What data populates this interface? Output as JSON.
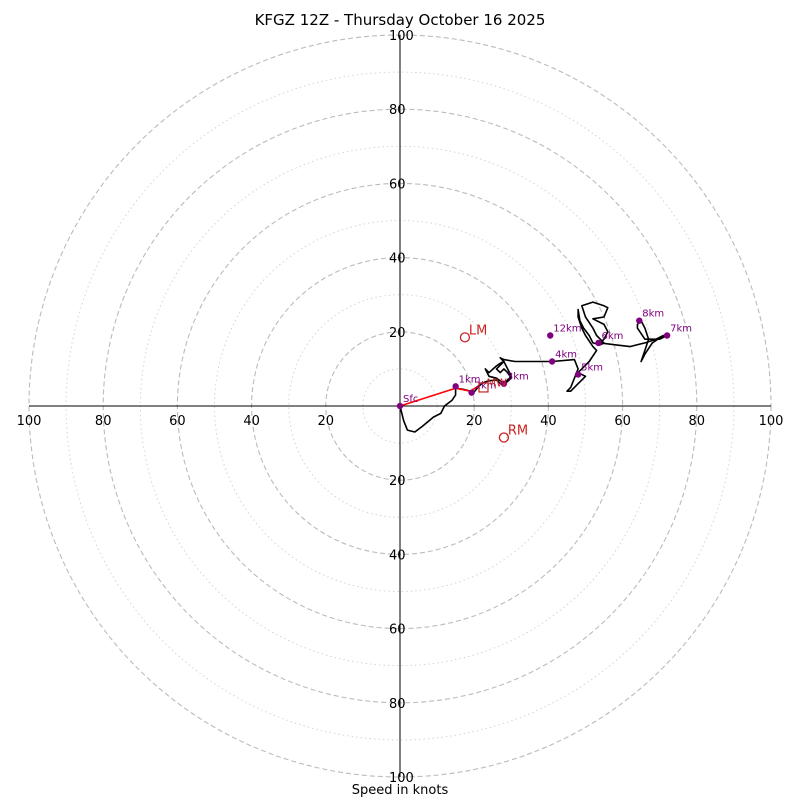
{
  "chart_data": {
    "type": "hodograph",
    "title": "KFGZ 12Z - Thursday October 16 2025",
    "xlabel": "Speed in knots",
    "range": 100,
    "ring_major": [
      20,
      40,
      60,
      80,
      100
    ],
    "ring_minor": [
      10,
      30,
      50,
      70,
      90
    ],
    "tick_labels": [
      "100",
      "80",
      "60",
      "40",
      "20",
      "20",
      "40",
      "60",
      "80",
      "100"
    ],
    "y_tick_labels_top": [
      "20",
      "40",
      "60",
      "80",
      "100"
    ],
    "y_tick_labels_bottom": [
      "20",
      "40",
      "60",
      "80",
      "100"
    ],
    "x_tick_values": [
      -100,
      -80,
      -60,
      -40,
      -20,
      20,
      40,
      60,
      80,
      100
    ],
    "colors": {
      "trace": "#000000",
      "lowlevel": "#ff0000",
      "height_marker": "#800080",
      "storm_motion": "#cc2222",
      "grid": "#bbbbbb"
    },
    "trace": [
      [
        0,
        0
      ],
      [
        1,
        -4
      ],
      [
        2,
        -6.5
      ],
      [
        4,
        -7
      ],
      [
        6,
        -5.5
      ],
      [
        9,
        -3
      ],
      [
        11,
        -2
      ],
      [
        12,
        0
      ],
      [
        14,
        1.5
      ],
      [
        15,
        3
      ],
      [
        15,
        4.8
      ],
      [
        17,
        4.5
      ],
      [
        19,
        4
      ],
      [
        20,
        3.8
      ],
      [
        21,
        5
      ],
      [
        22,
        6
      ],
      [
        23,
        6.5
      ],
      [
        24,
        6.8
      ],
      [
        26,
        7
      ],
      [
        27,
        6
      ],
      [
        28,
        5.8
      ],
      [
        30,
        7.5
      ],
      [
        29,
        9
      ],
      [
        28,
        10
      ],
      [
        27,
        9
      ],
      [
        26,
        10
      ],
      [
        27,
        11
      ],
      [
        28,
        12
      ],
      [
        27,
        11.5
      ],
      [
        26,
        10.8
      ],
      [
        24,
        9
      ],
      [
        23,
        10
      ],
      [
        24,
        8
      ],
      [
        26,
        7.5
      ],
      [
        28,
        6
      ],
      [
        30,
        8
      ],
      [
        29,
        10
      ],
      [
        28,
        12
      ],
      [
        27,
        13
      ],
      [
        28,
        12.5
      ],
      [
        31,
        12
      ],
      [
        34,
        12
      ],
      [
        37,
        12
      ],
      [
        41,
        12
      ],
      [
        47,
        12.5
      ],
      [
        48,
        10
      ],
      [
        47,
        7.5
      ],
      [
        46,
        5
      ],
      [
        45,
        4
      ],
      [
        46,
        4
      ],
      [
        48,
        6
      ],
      [
        50,
        8
      ],
      [
        48,
        9
      ],
      [
        49,
        10
      ],
      [
        51,
        12
      ],
      [
        53,
        15
      ],
      [
        52,
        16
      ],
      [
        50,
        19
      ],
      [
        49,
        21
      ],
      [
        48,
        24
      ],
      [
        48,
        26
      ],
      [
        48.5,
        23
      ],
      [
        49.5,
        21
      ],
      [
        51,
        19
      ],
      [
        52,
        17
      ],
      [
        54,
        16.5
      ],
      [
        55,
        17
      ],
      [
        53,
        19
      ],
      [
        52,
        21
      ],
      [
        50,
        24
      ],
      [
        49,
        27
      ],
      [
        52,
        28
      ],
      [
        55,
        27
      ],
      [
        56,
        26.5
      ],
      [
        55,
        24
      ],
      [
        52,
        23.5
      ],
      [
        55,
        22
      ],
      [
        56,
        20
      ],
      [
        55,
        18
      ],
      [
        54,
        17
      ],
      [
        58,
        16.5
      ],
      [
        62,
        16
      ],
      [
        66,
        17
      ],
      [
        69,
        18
      ],
      [
        71,
        19
      ],
      [
        68,
        17
      ],
      [
        66,
        14
      ],
      [
        65,
        12
      ],
      [
        66,
        15
      ],
      [
        67,
        18
      ],
      [
        66,
        21
      ],
      [
        65,
        23
      ],
      [
        64,
        22
      ],
      [
        64,
        21
      ],
      [
        66,
        18
      ],
      [
        70,
        18
      ],
      [
        72,
        19
      ]
    ],
    "red_segment": [
      [
        0,
        0
      ],
      [
        15,
        4.8
      ],
      [
        19,
        4
      ],
      [
        21,
        5.3
      ]
    ],
    "height_markers": [
      {
        "label": "Sfc",
        "u": 0,
        "v": 0
      },
      {
        "label": "1km",
        "u": 15,
        "v": 5.3
      },
      {
        "label": "2km",
        "u": 19.3,
        "v": 3.6
      },
      {
        "label": "3km",
        "u": 28,
        "v": 6
      },
      {
        "label": "4km",
        "u": 41,
        "v": 12
      },
      {
        "label": "5km",
        "u": 48,
        "v": 8.5
      },
      {
        "label": "6km",
        "u": 53.5,
        "v": 17
      },
      {
        "label": "7km",
        "u": 72,
        "v": 19
      },
      {
        "label": "8km",
        "u": 64.5,
        "v": 23
      },
      {
        "label": "12km",
        "u": 40.5,
        "v": 19
      }
    ],
    "storm_motion": [
      {
        "label": "LM",
        "u": 17.5,
        "v": 18.5
      },
      {
        "label": "RM",
        "u": 28,
        "v": -8.5
      }
    ],
    "mean_wind": {
      "label": "MW",
      "u": 22.5,
      "v": 5
    }
  }
}
